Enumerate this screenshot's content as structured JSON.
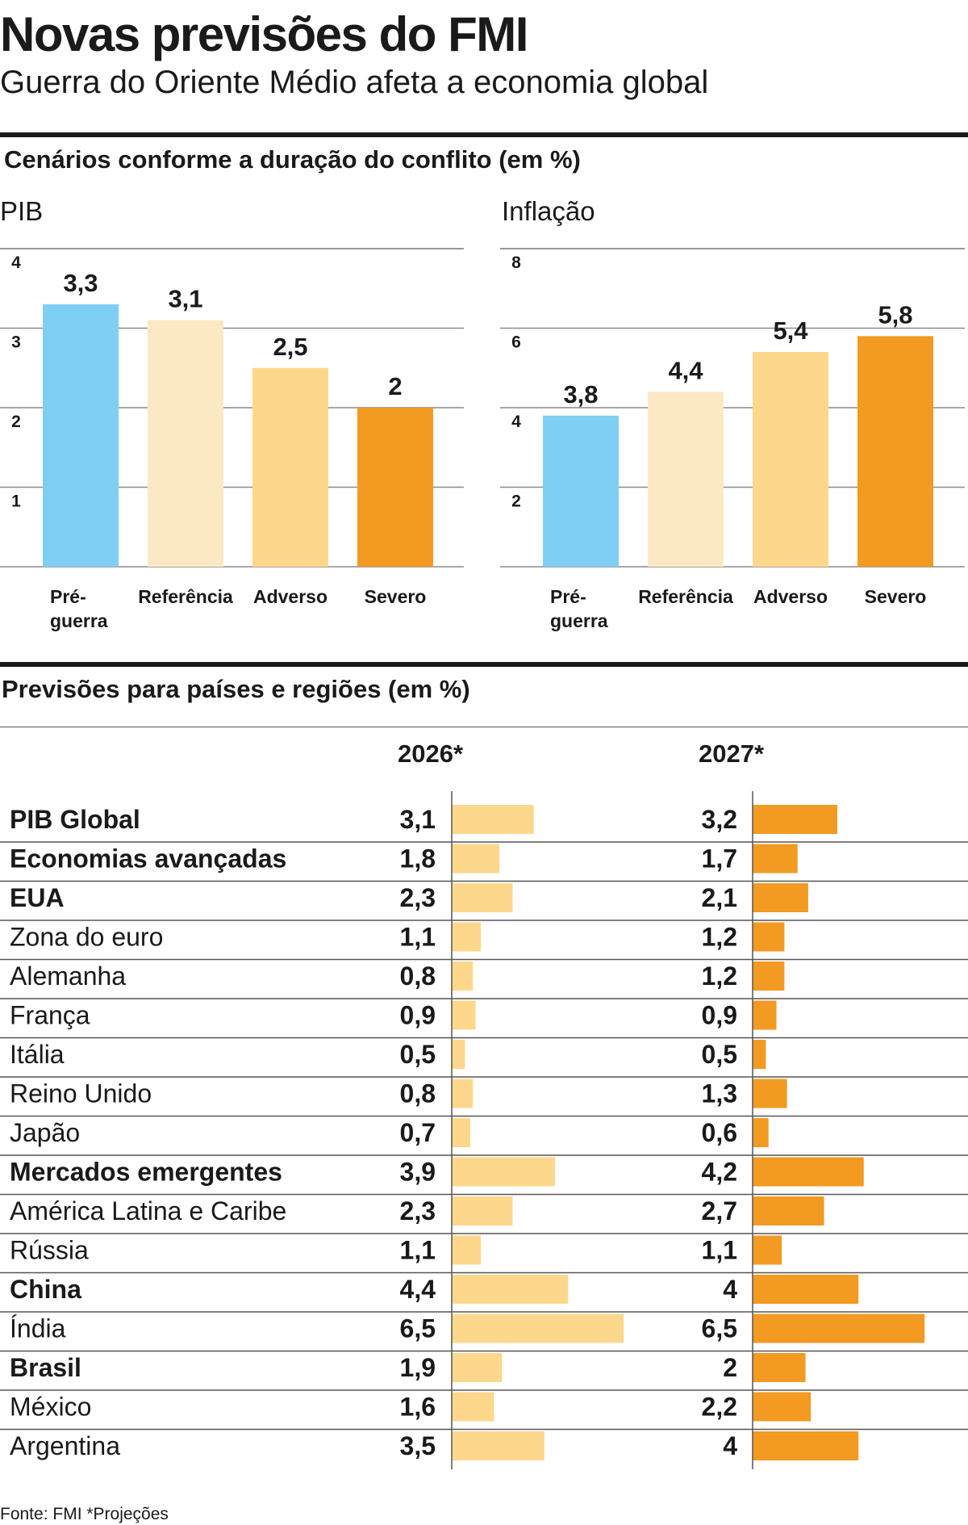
{
  "title": "Novas previsões do FMI",
  "subtitle": "Guerra do Oriente Médio afeta a economia global",
  "section1": {
    "heading": "Cenários conforme a duração do conflito (em %)"
  },
  "section2": {
    "heading": "Previsões para países e regiões (em %)",
    "year_2026": "2026*",
    "year_2027": "2027*"
  },
  "footer": "Fonte: FMI *Projeções",
  "colors": {
    "pre_guerra": "#7ecff3",
    "referencia": "#fce9c4",
    "adverso": "#fdd88c",
    "severo": "#f29a21",
    "bar_2026": "#fdd88c",
    "bar_2027": "#f29a21"
  },
  "chart_data": [
    {
      "type": "bar",
      "subtitle": "PIB",
      "categories": [
        "Pré-guerra",
        "Referência",
        "Adverso",
        "Severo"
      ],
      "category_lines": [
        [
          "Pré-",
          "guerra"
        ],
        [
          "Referência"
        ],
        [
          "Adverso"
        ],
        [
          "Severo"
        ]
      ],
      "values": [
        3.3,
        3.1,
        2.5,
        2
      ],
      "value_labels": [
        "3,3",
        "3,1",
        "2,5",
        "2"
      ],
      "ylim": [
        0,
        4
      ],
      "yticks": [
        1,
        2,
        3,
        4
      ],
      "grid": true
    },
    {
      "type": "bar",
      "subtitle": "Inflação",
      "categories": [
        "Pré-guerra",
        "Referência",
        "Adverso",
        "Severo"
      ],
      "category_lines": [
        [
          "Pré-",
          "guerra"
        ],
        [
          "Referência"
        ],
        [
          "Adverso"
        ],
        [
          "Severo"
        ]
      ],
      "values": [
        3.8,
        4.4,
        5.4,
        5.8
      ],
      "value_labels": [
        "3,8",
        "4,4",
        "5,4",
        "5,8"
      ],
      "ylim": [
        0,
        8
      ],
      "yticks": [
        2,
        4,
        6,
        8
      ],
      "grid": true
    },
    {
      "type": "table",
      "columns": [
        "2026*",
        "2027*"
      ],
      "rows": [
        {
          "label": "PIB Global",
          "bold": true,
          "v2026": 3.1,
          "t2026": "3,1",
          "v2027": 3.2,
          "t2027": "3,2"
        },
        {
          "label": "Economias avançadas",
          "bold": true,
          "v2026": 1.8,
          "t2026": "1,8",
          "v2027": 1.7,
          "t2027": "1,7"
        },
        {
          "label": "EUA",
          "bold": true,
          "v2026": 2.3,
          "t2026": "2,3",
          "v2027": 2.1,
          "t2027": "2,1"
        },
        {
          "label": "Zona do euro",
          "bold": false,
          "v2026": 1.1,
          "t2026": "1,1",
          "v2027": 1.2,
          "t2027": "1,2"
        },
        {
          "label": "Alemanha",
          "bold": false,
          "v2026": 0.8,
          "t2026": "0,8",
          "v2027": 1.2,
          "t2027": "1,2"
        },
        {
          "label": "França",
          "bold": false,
          "v2026": 0.9,
          "t2026": "0,9",
          "v2027": 0.9,
          "t2027": "0,9"
        },
        {
          "label": "Itália",
          "bold": false,
          "v2026": 0.5,
          "t2026": "0,5",
          "v2027": 0.5,
          "t2027": "0,5"
        },
        {
          "label": "Reino Unido",
          "bold": false,
          "v2026": 0.8,
          "t2026": "0,8",
          "v2027": 1.3,
          "t2027": "1,3"
        },
        {
          "label": "Japão",
          "bold": false,
          "v2026": 0.7,
          "t2026": "0,7",
          "v2027": 0.6,
          "t2027": "0,6"
        },
        {
          "label": "Mercados emergentes",
          "bold": true,
          "v2026": 3.9,
          "t2026": "3,9",
          "v2027": 4.2,
          "t2027": "4,2"
        },
        {
          "label": "América Latina e Caribe",
          "bold": false,
          "v2026": 2.3,
          "t2026": "2,3",
          "v2027": 2.7,
          "t2027": "2,7"
        },
        {
          "label": "Rússia",
          "bold": false,
          "v2026": 1.1,
          "t2026": "1,1",
          "v2027": 1.1,
          "t2027": "1,1"
        },
        {
          "label": "China",
          "bold": true,
          "v2026": 4.4,
          "t2026": "4,4",
          "v2027": 4,
          "t2027": "4"
        },
        {
          "label": "Índia",
          "bold": false,
          "v2026": 6.5,
          "t2026": "6,5",
          "v2027": 6.5,
          "t2027": "6,5"
        },
        {
          "label": "Brasil",
          "bold": true,
          "v2026": 1.9,
          "t2026": "1,9",
          "v2027": 2,
          "t2027": "2"
        },
        {
          "label": "México",
          "bold": false,
          "v2026": 1.6,
          "t2026": "1,6",
          "v2027": 2.2,
          "t2027": "2,2"
        },
        {
          "label": "Argentina",
          "bold": false,
          "v2026": 3.5,
          "t2026": "3,5",
          "v2027": 4,
          "t2027": "4"
        }
      ]
    }
  ]
}
